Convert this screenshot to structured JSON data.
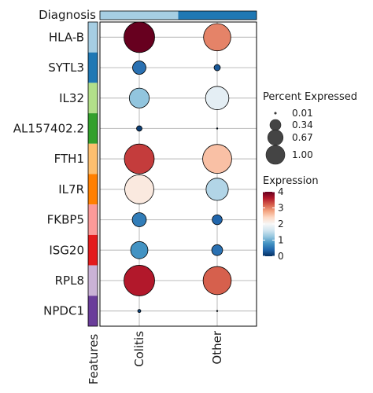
{
  "chart_data": {
    "type": "dotplot",
    "annotation_title": "Diagnosis",
    "features_label": "Features",
    "groups": [
      "Colitis",
      "Other"
    ],
    "group_colors": [
      "#a6cee3",
      "#1f78b4"
    ],
    "features": [
      "HLA-B",
      "SYTL3",
      "IL32",
      "AL157402.2",
      "FTH1",
      "IL7R",
      "FKBP5",
      "ISG20",
      "RPL8",
      "NPDC1"
    ],
    "feature_colors": [
      "#a6cee3",
      "#1f78b4",
      "#b2df8a",
      "#33a02c",
      "#fdbf6f",
      "#ff7f00",
      "#fb9a99",
      "#e31a1c",
      "#cab2d6",
      "#6a3d9a"
    ],
    "series": [
      {
        "group": "Colitis",
        "percent_expressed": [
          0.95,
          0.18,
          0.4,
          0.03,
          0.9,
          0.85,
          0.2,
          0.3,
          0.95,
          0.01
        ],
        "expression": [
          4.0,
          0.5,
          1.2,
          0.1,
          3.4,
          2.2,
          0.6,
          0.8,
          3.6,
          0.1
        ]
      },
      {
        "group": "Other",
        "percent_expressed": [
          0.75,
          0.04,
          0.55,
          0.0,
          0.85,
          0.5,
          0.1,
          0.12,
          0.8,
          0.0
        ],
        "expression": [
          3.0,
          0.3,
          1.8,
          0.1,
          2.6,
          1.4,
          0.4,
          0.5,
          3.2,
          0.1
        ]
      }
    ],
    "size_legend": {
      "title": "Percent Expressed",
      "labels": [
        "0.01",
        "0.34",
        "0.67",
        "1.00"
      ],
      "values": [
        0.01,
        0.34,
        0.67,
        1.0
      ]
    },
    "color_legend": {
      "title": "Expression",
      "ticks": [
        0,
        1,
        2,
        3,
        4
      ],
      "tick_labels": [
        "0",
        "1",
        "2",
        "3",
        "4"
      ],
      "range": [
        0,
        4
      ],
      "colors": [
        "#053061",
        "#2166ac",
        "#4393c3",
        "#92c5de",
        "#d1e5f0",
        "#f7f7f7",
        "#fddbc7",
        "#f4a582",
        "#d6604d",
        "#b2182b",
        "#67001f"
      ]
    }
  }
}
